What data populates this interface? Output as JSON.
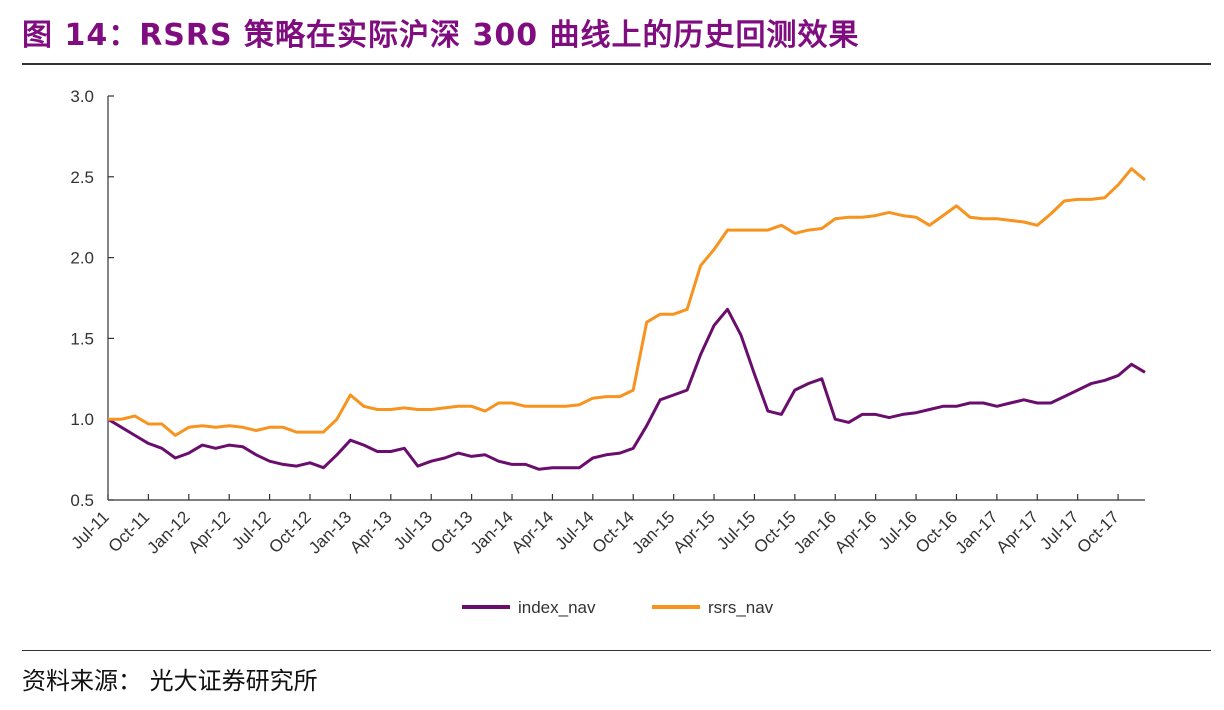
{
  "title": "图 14：RSRS 策略在实际沪深 300 曲线上的历史回测效果",
  "source": "资料来源：  光大证券研究所",
  "colors": {
    "index_nav": "#6a0e6e",
    "rsrs_nav": "#f7931e",
    "title": "#7f0d7f"
  },
  "chart_data": {
    "type": "line",
    "ylim": [
      0.5,
      3.0
    ],
    "yticks": [
      "0.5",
      "1.0",
      "1.5",
      "2.0",
      "2.5",
      "3.0"
    ],
    "ytick_values": [
      0.5,
      1.0,
      1.5,
      2.0,
      2.5,
      3.0
    ],
    "xlim": [
      "2011-07",
      "2017-12"
    ],
    "xtick_labels": [
      "Jul-11",
      "Oct-11",
      "Jan-12",
      "Apr-12",
      "Jul-12",
      "Oct-12",
      "Jan-13",
      "Apr-13",
      "Jul-13",
      "Oct-13",
      "Jan-14",
      "Apr-14",
      "Jul-14",
      "Oct-14",
      "Jan-15",
      "Apr-15",
      "Jul-15",
      "Oct-15",
      "Jan-16",
      "Apr-16",
      "Jul-16",
      "Oct-16",
      "Jan-17",
      "Apr-17",
      "Jul-17",
      "Oct-17"
    ],
    "legend_position": "bottom",
    "grid": false,
    "series": [
      {
        "name": "index_nav",
        "x": [
          "2011-07",
          "2011-08",
          "2011-09",
          "2011-10",
          "2011-11",
          "2011-12",
          "2012-01",
          "2012-02",
          "2012-03",
          "2012-04",
          "2012-05",
          "2012-06",
          "2012-07",
          "2012-08",
          "2012-09",
          "2012-10",
          "2012-11",
          "2012-12",
          "2013-01",
          "2013-02",
          "2013-03",
          "2013-04",
          "2013-05",
          "2013-06",
          "2013-07",
          "2013-08",
          "2013-09",
          "2013-10",
          "2013-11",
          "2013-12",
          "2014-01",
          "2014-02",
          "2014-03",
          "2014-04",
          "2014-05",
          "2014-06",
          "2014-07",
          "2014-08",
          "2014-09",
          "2014-10",
          "2014-11",
          "2014-12",
          "2015-01",
          "2015-02",
          "2015-03",
          "2015-04",
          "2015-05",
          "2015-06",
          "2015-07",
          "2015-08",
          "2015-09",
          "2015-10",
          "2015-11",
          "2015-12",
          "2016-01",
          "2016-02",
          "2016-03",
          "2016-04",
          "2016-05",
          "2016-06",
          "2016-07",
          "2016-08",
          "2016-09",
          "2016-10",
          "2016-11",
          "2016-12",
          "2017-01",
          "2017-02",
          "2017-03",
          "2017-04",
          "2017-05",
          "2017-06",
          "2017-07",
          "2017-08",
          "2017-09",
          "2017-10",
          "2017-11",
          "2017-12"
        ],
        "values": [
          1.0,
          0.95,
          0.9,
          0.85,
          0.82,
          0.76,
          0.79,
          0.84,
          0.82,
          0.84,
          0.83,
          0.78,
          0.74,
          0.72,
          0.71,
          0.73,
          0.7,
          0.78,
          0.87,
          0.84,
          0.8,
          0.8,
          0.82,
          0.71,
          0.74,
          0.76,
          0.79,
          0.77,
          0.78,
          0.74,
          0.72,
          0.72,
          0.69,
          0.7,
          0.7,
          0.7,
          0.76,
          0.78,
          0.79,
          0.82,
          0.96,
          1.12,
          1.15,
          1.18,
          1.4,
          1.58,
          1.68,
          1.52,
          1.28,
          1.05,
          1.03,
          1.18,
          1.22,
          1.25,
          1.0,
          0.98,
          1.03,
          1.03,
          1.01,
          1.03,
          1.04,
          1.06,
          1.08,
          1.08,
          1.1,
          1.1,
          1.08,
          1.1,
          1.12,
          1.1,
          1.1,
          1.14,
          1.18,
          1.22,
          1.24,
          1.27,
          1.34,
          1.29
        ]
      },
      {
        "name": "rsrs_nav",
        "x": [
          "2011-07",
          "2011-08",
          "2011-09",
          "2011-10",
          "2011-11",
          "2011-12",
          "2012-01",
          "2012-02",
          "2012-03",
          "2012-04",
          "2012-05",
          "2012-06",
          "2012-07",
          "2012-08",
          "2012-09",
          "2012-10",
          "2012-11",
          "2012-12",
          "2013-01",
          "2013-02",
          "2013-03",
          "2013-04",
          "2013-05",
          "2013-06",
          "2013-07",
          "2013-08",
          "2013-09",
          "2013-10",
          "2013-11",
          "2013-12",
          "2014-01",
          "2014-02",
          "2014-03",
          "2014-04",
          "2014-05",
          "2014-06",
          "2014-07",
          "2014-08",
          "2014-09",
          "2014-10",
          "2014-11",
          "2014-12",
          "2015-01",
          "2015-02",
          "2015-03",
          "2015-04",
          "2015-05",
          "2015-06",
          "2015-07",
          "2015-08",
          "2015-09",
          "2015-10",
          "2015-11",
          "2015-12",
          "2016-01",
          "2016-02",
          "2016-03",
          "2016-04",
          "2016-05",
          "2016-06",
          "2016-07",
          "2016-08",
          "2016-09",
          "2016-10",
          "2016-11",
          "2016-12",
          "2017-01",
          "2017-02",
          "2017-03",
          "2017-04",
          "2017-05",
          "2017-06",
          "2017-07",
          "2017-08",
          "2017-09",
          "2017-10",
          "2017-11",
          "2017-12"
        ],
        "values": [
          1.0,
          1.0,
          1.02,
          0.97,
          0.97,
          0.9,
          0.95,
          0.96,
          0.95,
          0.96,
          0.95,
          0.93,
          0.95,
          0.95,
          0.92,
          0.92,
          0.92,
          1.0,
          1.15,
          1.08,
          1.06,
          1.06,
          1.07,
          1.06,
          1.06,
          1.07,
          1.08,
          1.08,
          1.05,
          1.1,
          1.1,
          1.08,
          1.08,
          1.08,
          1.08,
          1.09,
          1.13,
          1.14,
          1.14,
          1.18,
          1.6,
          1.65,
          1.65,
          1.68,
          1.95,
          2.05,
          2.17,
          2.17,
          2.17,
          2.17,
          2.2,
          2.15,
          2.17,
          2.18,
          2.24,
          2.25,
          2.25,
          2.26,
          2.28,
          2.26,
          2.25,
          2.2,
          2.26,
          2.32,
          2.25,
          2.24,
          2.24,
          2.23,
          2.22,
          2.2,
          2.27,
          2.35,
          2.36,
          2.36,
          2.37,
          2.45,
          2.55,
          2.48
        ]
      }
    ]
  }
}
